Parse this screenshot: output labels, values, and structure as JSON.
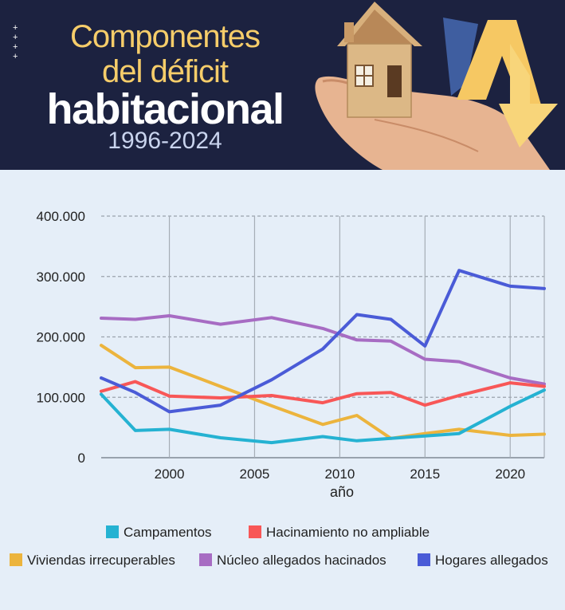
{
  "banner": {
    "title_line1": "Componentes",
    "title_line2": "del déficit",
    "title_line3": "habitacional",
    "subtitle": "1996-2024",
    "decor_icon": "plus-icon"
  },
  "chart_data": {
    "type": "line",
    "title": "Componentes del déficit habitacional",
    "xlabel": "año",
    "ylabel": "",
    "xlim": [
      1996,
      2022
    ],
    "ylim": [
      0,
      400000
    ],
    "x_ticks": [
      2000,
      2005,
      2010,
      2015,
      2020
    ],
    "y_ticks": [
      0,
      100000,
      200000,
      300000,
      400000
    ],
    "y_tick_labels": [
      "0",
      "100.000",
      "200.000",
      "300.000",
      "400.000"
    ],
    "grid": true,
    "legend_position": "bottom",
    "series": [
      {
        "name": "Campamentos",
        "color": "#25b2d2",
        "x": [
          1996,
          1998,
          2000,
          2003,
          2006,
          2009,
          2011,
          2013,
          2015,
          2017,
          2020,
          2022
        ],
        "y": [
          105000,
          45000,
          47000,
          33000,
          25000,
          35000,
          28000,
          32000,
          36000,
          40000,
          85000,
          112000
        ]
      },
      {
        "name": "Hacinamiento no ampliable",
        "color": "#f85757",
        "x": [
          1996,
          1998,
          2000,
          2003,
          2006,
          2009,
          2011,
          2013,
          2015,
          2017,
          2020,
          2022
        ],
        "y": [
          110000,
          126000,
          102000,
          99000,
          103000,
          91000,
          106000,
          108000,
          87000,
          103000,
          124000,
          118000
        ]
      },
      {
        "name": "Viviendas irrecuperables",
        "color": "#ecb43d",
        "x": [
          1996,
          1998,
          2000,
          2003,
          2006,
          2009,
          2011,
          2013,
          2015,
          2017,
          2020,
          2022
        ],
        "y": [
          186000,
          149000,
          150000,
          118000,
          86000,
          55000,
          70000,
          32000,
          40000,
          47000,
          37000,
          39000
        ]
      },
      {
        "name": "Núcleo allegados hacinados",
        "color": "#a76cc3",
        "x": [
          1996,
          1998,
          2000,
          2003,
          2006,
          2009,
          2011,
          2013,
          2015,
          2017,
          2020,
          2022
        ],
        "y": [
          231000,
          229000,
          235000,
          221000,
          232000,
          214000,
          195000,
          193000,
          163000,
          159000,
          132000,
          122000
        ]
      },
      {
        "name": "Hogares allegados",
        "color": "#4a5bd7",
        "x": [
          1996,
          1998,
          2000,
          2003,
          2006,
          2009,
          2011,
          2013,
          2015,
          2017,
          2020,
          2022
        ],
        "y": [
          132000,
          108000,
          76000,
          87000,
          129000,
          180000,
          237000,
          229000,
          185000,
          310000,
          284000,
          280000
        ]
      }
    ]
  }
}
